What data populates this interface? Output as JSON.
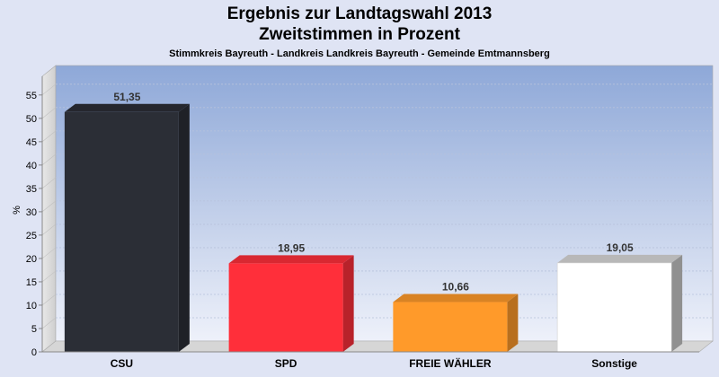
{
  "chart_data": {
    "type": "bar",
    "title": "Ergebnis zur Landtagswahl 2013",
    "subtitle": "Zweitstimmen in Prozent",
    "caption": "Stimmkreis Bayreuth - Landkreis Landkreis Bayreuth - Gemeinde Emtmannsberg",
    "ylabel": "%",
    "xlabel": "",
    "ylim": [
      0,
      59
    ],
    "yticks": [
      0,
      5,
      10,
      15,
      20,
      25,
      30,
      35,
      40,
      45,
      50,
      55
    ],
    "categories": [
      "CSU",
      "SPD",
      "FREIE WÄHLER",
      "Sonstige"
    ],
    "values": [
      51.35,
      18.95,
      10.66,
      19.05
    ],
    "value_labels": [
      "51,35",
      "18,95",
      "10,66",
      "19,05"
    ],
    "colors": [
      "#2b2e36",
      "#ff2f3a",
      "#ff9a2a",
      "#ffffff"
    ],
    "grid": true,
    "legend": "none"
  }
}
